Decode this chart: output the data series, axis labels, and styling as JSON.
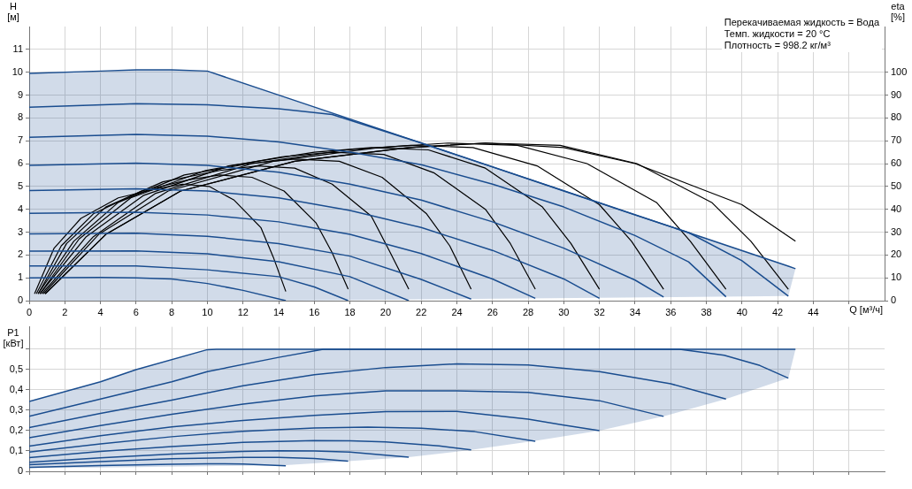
{
  "chart_data": [
    {
      "type": "line",
      "ylabel": "H [м]",
      "y2label": "eta [%]",
      "xlabel": "Q [м³/ч]",
      "annotations": [
        "Перекачиваемая жидкость = Вода",
        "Темп. жидкости = 20 °C",
        "Плотность = 998.2 кг/м³"
      ],
      "xlim": [
        0,
        48
      ],
      "xticks": [
        0,
        2,
        4,
        6,
        8,
        10,
        12,
        14,
        16,
        18,
        20,
        22,
        24,
        26,
        28,
        30,
        32,
        34,
        36,
        38,
        40,
        42,
        44,
        {
          "value": 46,
          "label": null
        }
      ],
      "ylim": [
        0,
        12
      ],
      "yticks": [
        0,
        1,
        2,
        3,
        4,
        5,
        6,
        7,
        8,
        9,
        10,
        11
      ],
      "y2lim": [
        0,
        120
      ],
      "y2ticks": [
        0,
        10,
        20,
        30,
        40,
        50,
        60,
        70,
        80,
        90,
        100
      ],
      "grid": true,
      "legend": false,
      "series": [
        {
          "color": "#1a4d8f",
          "x": [
            0,
            4,
            6,
            8,
            10,
            14.5,
            42.6,
            43
          ],
          "values": [
            9.95,
            10.05,
            10.1,
            10.1,
            10.05,
            8.87,
            1.51,
            1.4
          ],
          "upper": [
            9.95,
            10.05,
            10.1,
            10.1,
            10.05,
            8.87,
            1.51,
            1.4
          ],
          "lower": [
            0,
            0,
            0,
            0,
            0,
            0,
            0.2,
            1.4
          ]
        },
        {
          "color": "#1a4d8f",
          "x": [
            0,
            6,
            10,
            14,
            17,
            22,
            26,
            30,
            34,
            37,
            40,
            42.6
          ],
          "values": [
            8.47,
            8.62,
            8.57,
            8.4,
            8.15,
            6.9,
            5.85,
            4.8,
            3.75,
            2.98,
            1.75,
            0.2
          ]
        },
        {
          "color": "#1a4d8f",
          "x": [
            0,
            6,
            10,
            14,
            18,
            22,
            26,
            30,
            34,
            37,
            39.1
          ],
          "values": [
            7.15,
            7.28,
            7.2,
            6.95,
            6.5,
            5.95,
            5.1,
            4.1,
            2.85,
            1.7,
            0.17
          ]
        },
        {
          "color": "#1a4d8f",
          "x": [
            0,
            6,
            10,
            14,
            18,
            22,
            26,
            30,
            34,
            35.6
          ],
          "values": [
            5.92,
            6.02,
            5.92,
            5.62,
            5.1,
            4.4,
            3.45,
            2.3,
            0.9,
            0.16
          ]
        },
        {
          "color": "#1a4d8f",
          "x": [
            0,
            6,
            10,
            14,
            18,
            22,
            26,
            30,
            32
          ],
          "values": [
            4.82,
            4.9,
            4.8,
            4.5,
            3.95,
            3.2,
            2.2,
            0.95,
            0.1
          ]
        },
        {
          "color": "#1a4d8f",
          "x": [
            0,
            6,
            10,
            14,
            18,
            22,
            26,
            28.4
          ],
          "values": [
            3.82,
            3.87,
            3.75,
            3.45,
            2.9,
            2.06,
            0.95,
            0.1
          ]
        },
        {
          "color": "#1a4d8f",
          "x": [
            0,
            6,
            10,
            14,
            18,
            22,
            24.8
          ],
          "values": [
            2.92,
            2.95,
            2.82,
            2.5,
            1.95,
            0.93,
            0.07
          ]
        },
        {
          "color": "#1a4d8f",
          "x": [
            0,
            6,
            10,
            14,
            18,
            21.3
          ],
          "values": [
            2.17,
            2.18,
            2.05,
            1.7,
            1.05,
            0
          ]
        },
        {
          "color": "#1a4d8f",
          "x": [
            0,
            6,
            10,
            14,
            16,
            17.9
          ],
          "values": [
            1.52,
            1.52,
            1.35,
            1.05,
            0.6,
            0
          ]
        },
        {
          "color": "#1a4d8f",
          "x": [
            0,
            4,
            6,
            8,
            10,
            12,
            14.4
          ],
          "values": [
            1.0,
            1.02,
            1.0,
            0.95,
            0.75,
            0.45,
            0
          ]
        },
        {
          "color": "#000000",
          "axis": "y2",
          "x": [
            0.3,
            1.4,
            2.9,
            5,
            7.2,
            8.6,
            10.1,
            11.5,
            13,
            13.7,
            14.4
          ],
          "values": [
            3,
            23,
            36,
            45,
            49,
            51,
            50,
            44,
            32,
            19,
            4
          ]
        },
        {
          "color": "#000000",
          "axis": "y2",
          "x": [
            0.4,
            1.8,
            3.6,
            6.3,
            9,
            10.7,
            12.5,
            14.3,
            16.1,
            17,
            17.9
          ],
          "values": [
            3,
            24,
            38,
            48,
            53,
            55,
            54,
            48,
            34,
            21,
            5
          ]
        },
        {
          "color": "#000000",
          "axis": "y2",
          "x": [
            0.5,
            2.1,
            4.3,
            7.5,
            10.7,
            12.8,
            14.9,
            17,
            19.2,
            20.2,
            21.3
          ],
          "values": [
            3,
            25,
            41,
            52,
            57,
            59,
            58,
            51,
            37,
            22,
            5
          ]
        },
        {
          "color": "#000000",
          "axis": "y2",
          "x": [
            0.5,
            2.5,
            5,
            8.7,
            12.4,
            14.9,
            17.4,
            19.8,
            22.3,
            23.6,
            24.8
          ],
          "values": [
            3,
            26,
            43,
            55,
            60,
            62,
            61,
            54,
            38,
            24,
            5
          ]
        },
        {
          "color": "#000000",
          "axis": "y2",
          "x": [
            0.6,
            2.8,
            5.7,
            9.9,
            14.2,
            17,
            19.9,
            22.7,
            25.6,
            27,
            28.4
          ],
          "values": [
            3,
            27,
            45,
            57,
            63,
            65,
            64,
            56,
            40,
            25,
            5
          ]
        },
        {
          "color": "#000000",
          "axis": "y2",
          "x": [
            0.6,
            3.2,
            6.4,
            11.2,
            16,
            19.2,
            22.4,
            25.6,
            28.8,
            30.4,
            32
          ],
          "values": [
            3,
            28,
            46,
            59,
            65,
            67,
            66,
            58,
            41,
            25,
            5
          ]
        },
        {
          "color": "#000000",
          "axis": "y2",
          "x": [
            0.7,
            3.6,
            7.1,
            12.5,
            17.8,
            21.4,
            24.9,
            28.5,
            32,
            33.8,
            35.6
          ],
          "values": [
            3,
            28,
            47,
            60,
            66,
            68,
            67,
            59,
            42,
            26,
            5
          ]
        },
        {
          "color": "#000000",
          "axis": "y2",
          "x": [
            0.8,
            3.9,
            7.8,
            13.7,
            19.6,
            23.5,
            27.4,
            31.3,
            35.2,
            37.1,
            39.1
          ],
          "values": [
            3,
            29,
            48,
            61,
            67,
            69,
            68,
            60,
            43,
            26,
            5
          ]
        },
        {
          "color": "#000000",
          "axis": "y2",
          "x": [
            0.9,
            4.3,
            8.5,
            14.9,
            21.3,
            25.6,
            29.8,
            34.1,
            38.3,
            40.5,
            42.6
          ],
          "values": [
            3,
            29,
            48,
            61,
            67,
            69,
            68,
            60,
            43,
            26,
            5
          ]
        },
        {
          "color": "#000000",
          "axis": "y2",
          "x": [
            0.9,
            4.3,
            8.5,
            14.9,
            21.3,
            25.6,
            30,
            34,
            37,
            40,
            43
          ],
          "values": [
            3,
            29,
            48,
            61,
            67,
            69,
            67,
            60,
            51,
            42,
            26
          ]
        }
      ]
    },
    {
      "type": "line",
      "ylabel": "P1 [кВт]",
      "xlim": [
        0,
        48
      ],
      "xticks": [
        0,
        2,
        4,
        6,
        8,
        10,
        12,
        14,
        16,
        18,
        20,
        22,
        24,
        26,
        28,
        30,
        32,
        34,
        36,
        38,
        40,
        42,
        44,
        46
      ],
      "ylim": [
        0,
        0.71
      ],
      "yticks": [
        0,
        {
          "value": 0.1,
          "label": "0,1"
        },
        {
          "value": 0.2,
          "label": "0,2"
        },
        {
          "value": 0.3,
          "label": "0,3"
        },
        {
          "value": 0.4,
          "label": "0,4"
        },
        {
          "value": 0.5,
          "label": "0,5"
        },
        {
          "value": 0.6,
          "label": null
        }
      ],
      "tick_labels": "y",
      "grid": true,
      "legend": false,
      "series": [
        {
          "color": "#1a4d8f",
          "x": [
            0,
            4,
            6,
            10,
            10.5,
            14.4,
            17.9,
            21.3,
            24.8,
            28.4,
            32,
            35.6,
            39.1,
            42.6,
            43
          ],
          "values": [
            0.343,
            0.44,
            0.5,
            0.598,
            0.6,
            0.6,
            0.6,
            0.6,
            0.6,
            0.6,
            0.6,
            0.6,
            0.6,
            0.6,
            0.6
          ],
          "upper": [
            0.343,
            0.44,
            0.5,
            0.598,
            0.6,
            0.6,
            0.6,
            0.6,
            0.6,
            0.6,
            0.6,
            0.6,
            0.6,
            0.6,
            0.6
          ],
          "lower": [
            0.015,
            0.019,
            0.021,
            0.025,
            0.026,
            0.03,
            0.05,
            0.07,
            0.105,
            0.15,
            0.2,
            0.27,
            0.355,
            0.458,
            0.6
          ]
        },
        {
          "color": "#1a4d8f",
          "x": [
            0,
            4,
            8,
            10,
            14,
            16.5,
            36.5,
            39,
            41,
            42.6
          ],
          "values": [
            0.27,
            0.355,
            0.44,
            0.49,
            0.56,
            0.6,
            0.6,
            0.57,
            0.52,
            0.458
          ]
        },
        {
          "color": "#1a4d8f",
          "x": [
            0,
            4,
            8,
            12,
            16,
            20,
            24,
            28,
            32,
            36,
            39.1
          ],
          "values": [
            0.215,
            0.285,
            0.35,
            0.42,
            0.475,
            0.51,
            0.528,
            0.522,
            0.49,
            0.43,
            0.355
          ]
        },
        {
          "color": "#1a4d8f",
          "x": [
            0,
            4,
            8,
            12,
            16,
            20,
            24,
            28,
            32,
            35.6
          ],
          "values": [
            0.165,
            0.225,
            0.28,
            0.33,
            0.37,
            0.395,
            0.395,
            0.388,
            0.347,
            0.27
          ]
        },
        {
          "color": "#1a4d8f",
          "x": [
            0,
            4,
            8,
            12,
            16,
            20,
            24,
            28,
            30,
            32
          ],
          "values": [
            0.124,
            0.175,
            0.218,
            0.25,
            0.275,
            0.293,
            0.294,
            0.256,
            0.227,
            0.2
          ]
        },
        {
          "color": "#1a4d8f",
          "x": [
            0,
            4,
            8,
            12,
            16,
            19,
            22,
            25,
            28.4
          ],
          "values": [
            0.095,
            0.135,
            0.17,
            0.197,
            0.213,
            0.217,
            0.212,
            0.195,
            0.148
          ]
        },
        {
          "color": "#1a4d8f",
          "x": [
            0,
            4,
            8,
            12,
            16,
            18,
            20,
            23,
            24.8
          ],
          "values": [
            0.067,
            0.098,
            0.122,
            0.142,
            0.151,
            0.15,
            0.145,
            0.125,
            0.105
          ]
        },
        {
          "color": "#1a4d8f",
          "x": [
            0,
            4,
            8,
            12,
            14,
            16,
            18,
            21.3
          ],
          "values": [
            0.044,
            0.066,
            0.085,
            0.098,
            0.101,
            0.1,
            0.094,
            0.07
          ]
        },
        {
          "color": "#1a4d8f",
          "x": [
            0,
            4,
            8,
            12,
            14,
            16,
            17.9
          ],
          "values": [
            0.033,
            0.048,
            0.062,
            0.068,
            0.068,
            0.063,
            0.05
          ]
        },
        {
          "color": "#1a4d8f",
          "x": [
            0,
            4,
            8,
            10,
            12,
            14.4
          ],
          "values": [
            0.02,
            0.028,
            0.035,
            0.037,
            0.036,
            0.027
          ]
        }
      ]
    }
  ]
}
